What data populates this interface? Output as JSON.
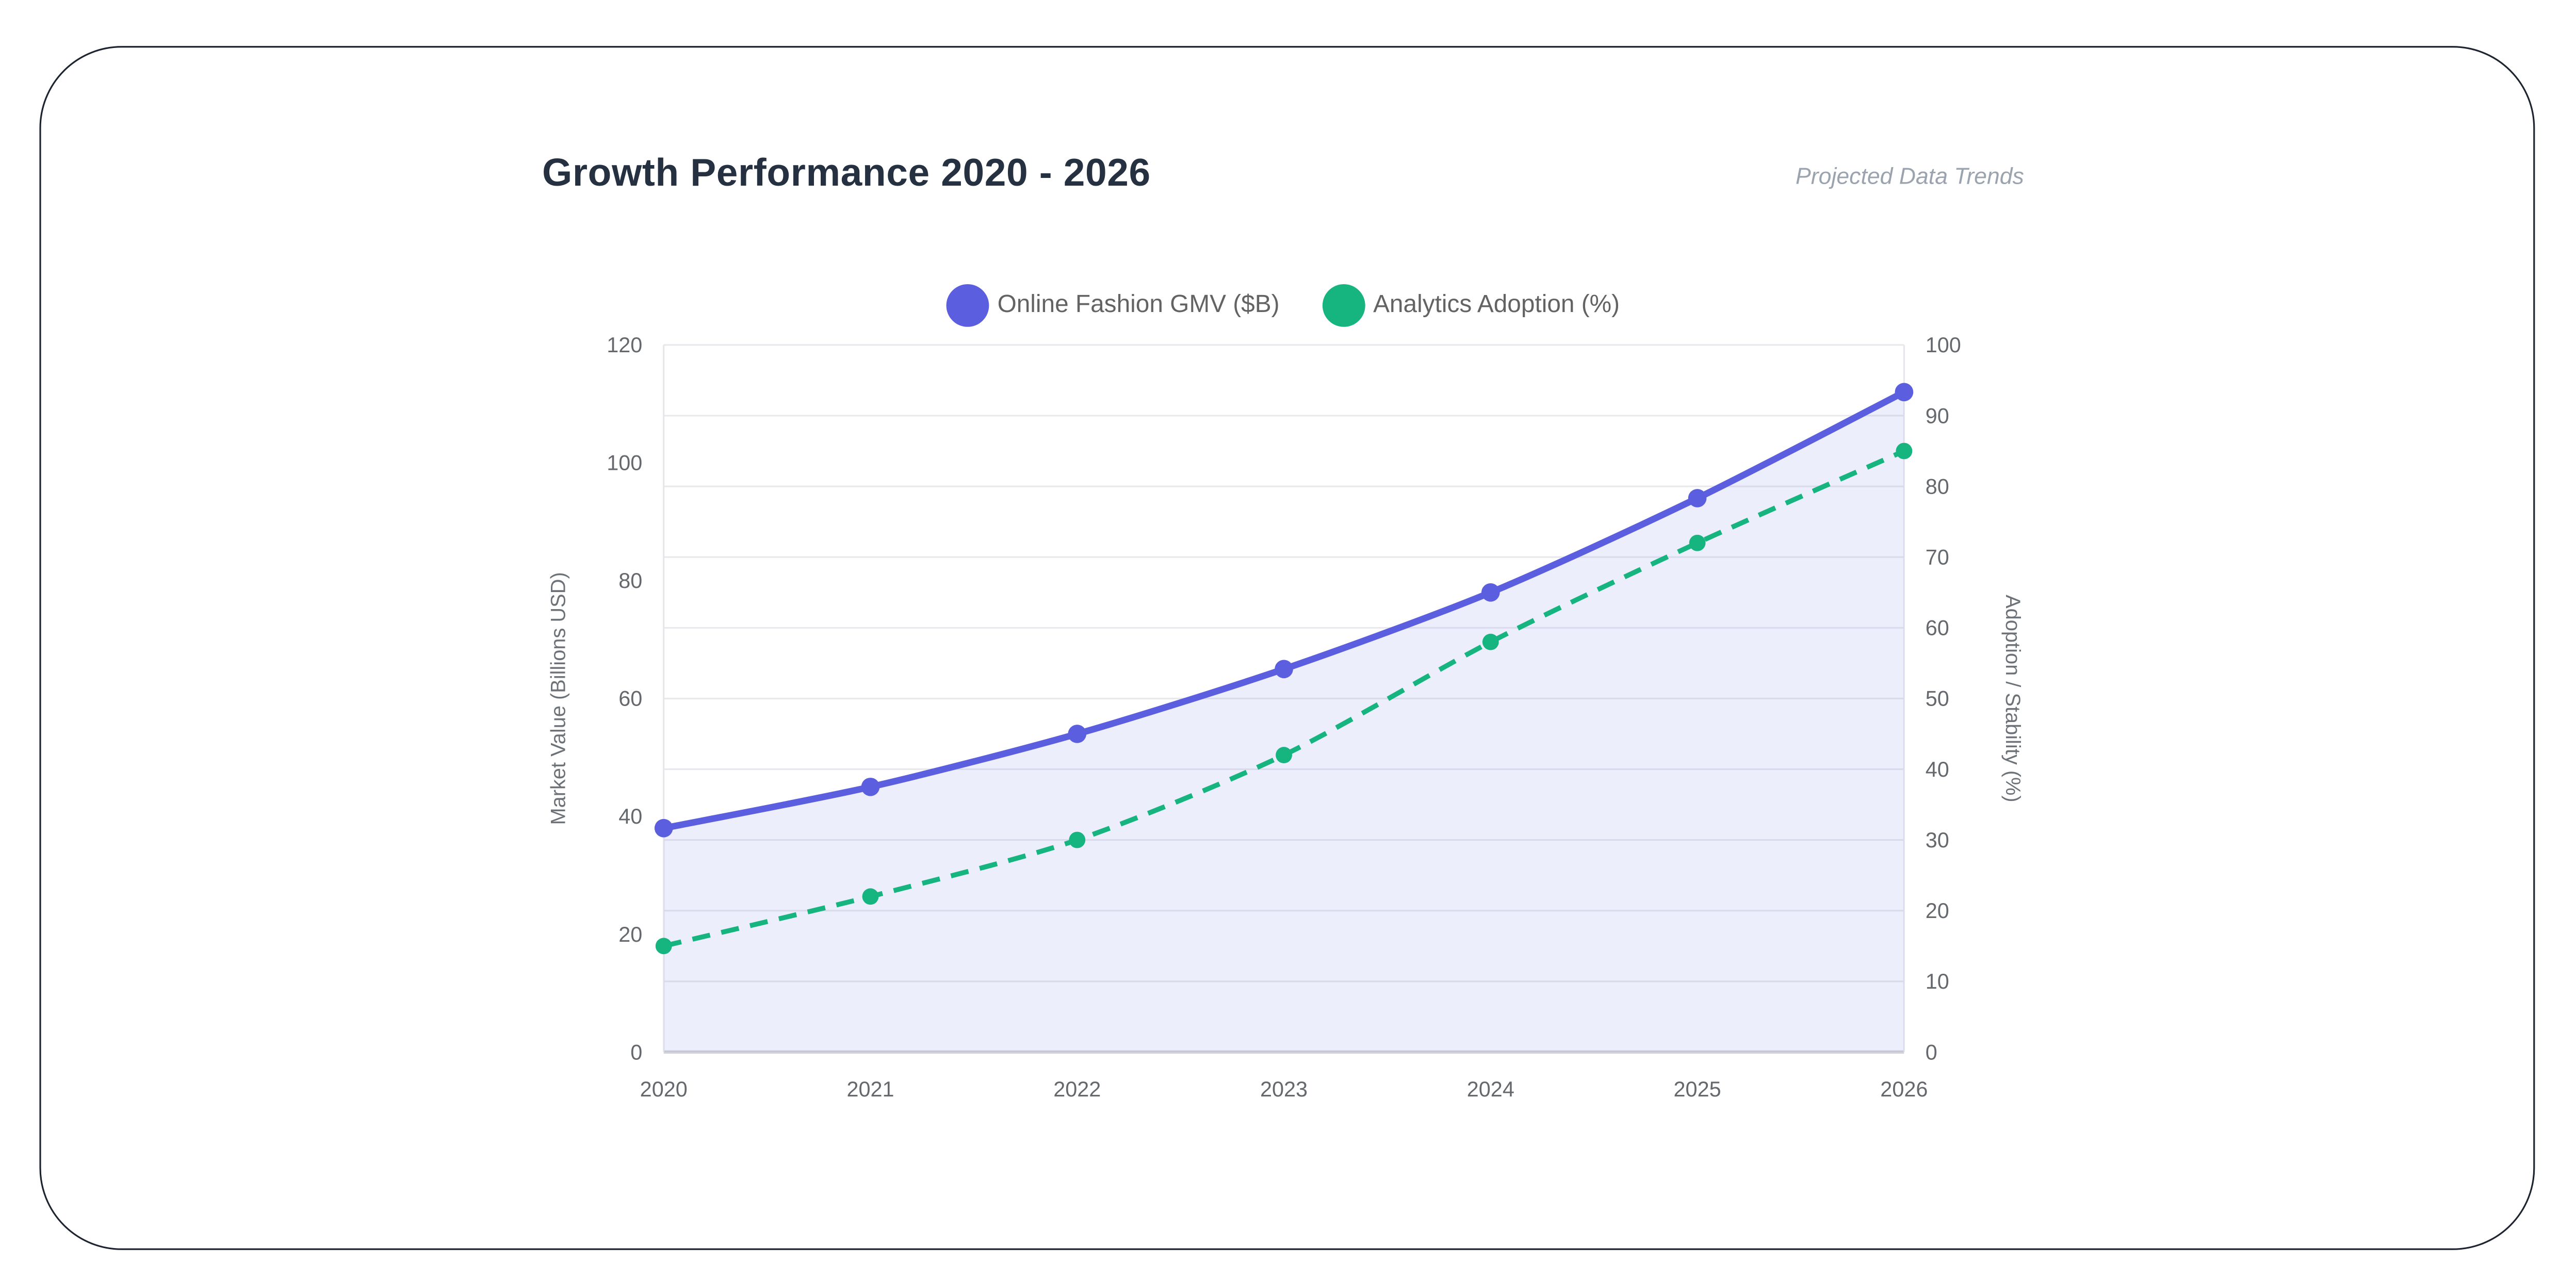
{
  "header": {
    "title": "Growth Performance 2020 - 2026",
    "subtitle": "Projected Data Trends"
  },
  "legend": [
    {
      "label": "Online Fashion GMV ($B)",
      "color": "#5b5fdf"
    },
    {
      "label": "Analytics Adoption (%)",
      "color": "#16b47e"
    }
  ],
  "chart_data": {
    "type": "line",
    "title": "Growth Performance 2020 - 2026",
    "subtitle": "Projected Data Trends",
    "categories": [
      "2020",
      "2021",
      "2022",
      "2023",
      "2024",
      "2025",
      "2026"
    ],
    "series": [
      {
        "name": "Online Fashion GMV ($B)",
        "axis": "left",
        "values": [
          38,
          45,
          54,
          65,
          78,
          94,
          112
        ],
        "color": "#5b5fdf",
        "line_style": "solid",
        "area_fill": true,
        "area_fill_color": "rgba(93,96,224,0.11)",
        "line_width": 4,
        "point_radius": 5.6
      },
      {
        "name": "Analytics Adoption (%)",
        "axis": "right",
        "values": [
          15,
          22,
          30,
          42,
          58,
          72,
          85
        ],
        "color": "#16b47e",
        "line_style": "dashed",
        "area_fill": false,
        "line_width": 3,
        "point_radius": 5
      }
    ],
    "left_axis": {
      "label": "Market Value (Billions USD)",
      "min": 0,
      "max": 120,
      "tick_step": 20,
      "ticks": [
        0,
        20,
        40,
        60,
        80,
        100,
        120
      ]
    },
    "right_axis": {
      "label": "Adoption / Stability (%)",
      "min": 0,
      "max": 100,
      "tick_step": 10,
      "ticks": [
        0,
        10,
        20,
        30,
        40,
        50,
        60,
        70,
        80,
        90,
        100
      ]
    },
    "grid": "horizontal lines at right-axis ticks; vertical borders at plot edges only",
    "legend_position": "top-center"
  },
  "colors": {
    "grid_line": "#e9e9ed",
    "plot_side_border": "#e7e7eb",
    "bottom_axis_line": "#d2d3d7",
    "tick_text": "#65686d",
    "axis_title_text": "#6d7278",
    "card_border": "#1d242f"
  }
}
